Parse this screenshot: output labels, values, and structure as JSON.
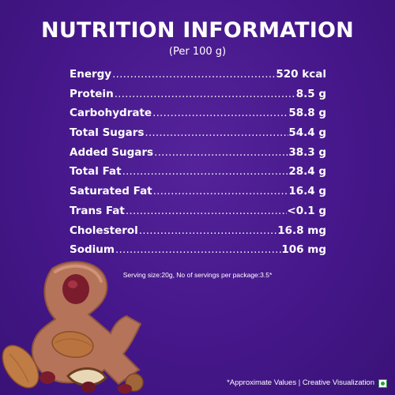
{
  "title": "NUTRITION INFORMATION",
  "subtitle": "(Per 100 g)",
  "nutrients": [
    {
      "name": "Energy",
      "value": "520 kcal"
    },
    {
      "name": "Protein",
      "value": "8.5 g"
    },
    {
      "name": "Carbohydrate",
      "value": "58.8 g"
    },
    {
      "name": "Total Sugars",
      "value": "54.4 g"
    },
    {
      "name": "Added Sugars",
      "value": "38.3 g"
    },
    {
      "name": "Total Fat",
      "value": "28.4 g"
    },
    {
      "name": "Saturated Fat",
      "value": "16.4 g"
    },
    {
      "name": "Trans Fat",
      "value": "<0.1 g"
    },
    {
      "name": "Cholesterol",
      "value": "16.8 mg"
    },
    {
      "name": "Sodium",
      "value": "106 mg"
    }
  ],
  "serving_note": "Serving size:20g, No of servings per package:3.5*",
  "footer": {
    "text": "*Approximate Values | Creative Visualization",
    "veg_icon": "veg-symbol-icon"
  },
  "illustration_icon": "chocolate-ampersand-with-nuts-icon",
  "colors": {
    "background": "#45178a",
    "text": "#ffffff",
    "chocolate": "#b5735a",
    "veg_green": "#2e9a47"
  }
}
